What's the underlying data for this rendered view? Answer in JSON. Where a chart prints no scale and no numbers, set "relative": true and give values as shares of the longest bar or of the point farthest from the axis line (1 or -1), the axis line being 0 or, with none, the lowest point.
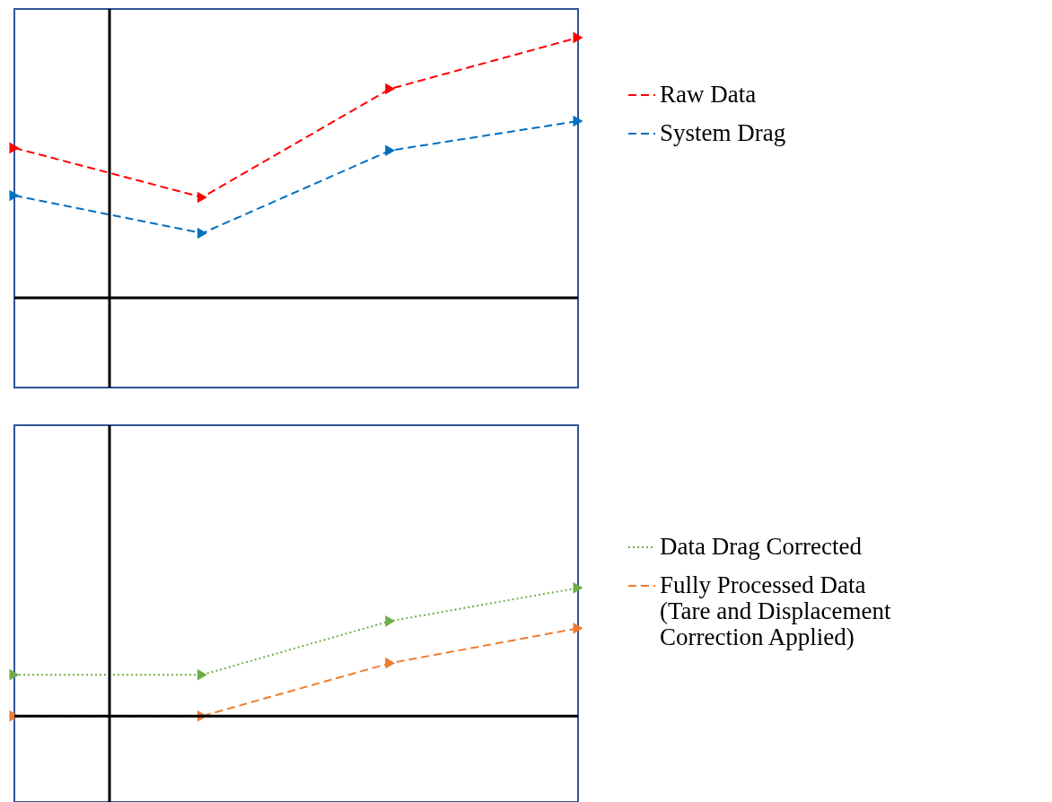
{
  "chart_data": [
    {
      "type": "line",
      "relative": true,
      "categories": [
        null,
        null,
        null,
        null
      ],
      "legend": "right",
      "tick_labels": false,
      "marker": "triangle",
      "series": [
        {
          "name": "Raw Data",
          "color": "#ff0000",
          "line_style": "dashed",
          "values": [
            0.576,
            0.386,
            0.803,
            1
          ]
        },
        {
          "name": "System Drag",
          "color": "#0070c0",
          "line_style": "dashed",
          "values": [
            0.393,
            0.248,
            0.566,
            0.679
          ]
        }
      ]
    },
    {
      "type": "line",
      "relative": true,
      "categories": [
        null,
        null,
        null,
        null
      ],
      "legend": "right",
      "tick_labels": false,
      "marker": "triangle",
      "series": [
        {
          "name": "Data Drag Corrected",
          "color": "#70ad47",
          "line_style": "dotted",
          "values": [
            0.322,
            0.322,
            0.741,
            1
          ]
        },
        {
          "name": "Fully Processed Data (Tare and Displacement Correction Applied)",
          "color": "#ed7d31",
          "line_style": "dashed",
          "values": [
            0,
            0,
            0.413,
            0.685
          ]
        }
      ]
    }
  ]
}
